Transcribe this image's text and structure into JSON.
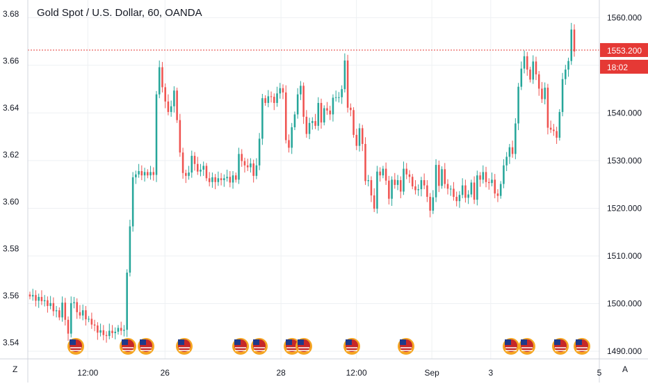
{
  "title": "Gold Spot / U.S. Dollar, 60, OANDA",
  "corner_left": "Z",
  "corner_right": "A",
  "last_price_label": "1553.200",
  "countdown_label": "18:02",
  "right_axis_partial": "155",
  "colors": {
    "up": "#26a69a",
    "down": "#ef5350",
    "grid": "#eef0f3",
    "axis_text": "#131722",
    "price_line": "#e53935"
  },
  "chart_data": {
    "type": "candlestick",
    "title": "Gold Spot / U.S. Dollar, 60, OANDA",
    "left_axis": {
      "ticks": [
        3.54,
        3.56,
        3.58,
        3.6,
        3.62,
        3.64,
        3.66,
        3.68
      ],
      "labels": [
        "3.54",
        "3.56",
        "3.58",
        "3.60",
        "3.62",
        "3.64",
        "3.66",
        "3.68"
      ],
      "range": [
        3.533,
        3.686
      ]
    },
    "right_axis": {
      "ticks": [
        1490,
        1500,
        1510,
        1520,
        1530,
        1540,
        1550,
        1560
      ],
      "labels": [
        "1490.000",
        "1500.000",
        "1510.000",
        "1520.000",
        "1530.000",
        "1540.000",
        "",
        "1560.000"
      ],
      "range": [
        1488.4,
        1563.7
      ]
    },
    "x_ticks": [
      {
        "label": "12:00",
        "frac": 0.105
      },
      {
        "label": "26",
        "frac": 0.24
      },
      {
        "label": "28",
        "frac": 0.443
      },
      {
        "label": "12:00",
        "frac": 0.575
      },
      {
        "label": "Sep",
        "frac": 0.707
      },
      {
        "label": "3",
        "frac": 0.81
      },
      {
        "label": "5",
        "frac": 1.0
      }
    ],
    "last_price": 1553.2,
    "grid": true,
    "series": [
      {
        "values": [
          1501.5,
          1501.8,
          1500.6,
          1501.4,
          1500.5,
          1500.7,
          1499.5,
          1500.1,
          1498.4,
          1498.6,
          1497.1,
          1500.2,
          1496.6,
          1493.7,
          1500.1,
          1500.3,
          1498.2,
          1497.5,
          1498.6,
          1496.7,
          1496.8,
          1495.6,
          1495.4,
          1493.9,
          1494.4,
          1493.4,
          1493.2,
          1494.3,
          1493.8,
          1494.1,
          1494.9,
          1494.3,
          1494.5,
          1506.5,
          1516.2,
          1526.5,
          1527.1,
          1527.8,
          1526.9,
          1527.6,
          1526.9,
          1527.6,
          1527.0,
          1543.9,
          1549.6,
          1545.4,
          1542.4,
          1540.2,
          1541.4,
          1544.7,
          1538.5,
          1531.7,
          1527.4,
          1526.8,
          1527.5,
          1531.0,
          1529.3,
          1527.7,
          1528.1,
          1528.9,
          1526.3,
          1525.5,
          1526.5,
          1525.5,
          1526.3,
          1525.9,
          1526.3,
          1526.6,
          1525.4,
          1526.9,
          1526.0,
          1531.4,
          1529.9,
          1529.0,
          1528.6,
          1529.4,
          1526.8,
          1529.0,
          1534.6,
          1543.1,
          1542.1,
          1543.5,
          1543.4,
          1542.1,
          1544.1,
          1545.2,
          1544.3,
          1534.3,
          1532.7,
          1537.0,
          1539.7,
          1543.9,
          1545.7,
          1539.2,
          1535.6,
          1537.9,
          1538.3,
          1537.3,
          1542.1,
          1538.0,
          1541.0,
          1540.5,
          1539.7,
          1543.2,
          1543.3,
          1543.3,
          1545.0,
          1551.0,
          1541.1,
          1540.6,
          1535.4,
          1533.1,
          1536.8,
          1533.5,
          1525.7,
          1525.9,
          1522.7,
          1519.9,
          1527.7,
          1526.9,
          1528.3,
          1525.8,
          1522.0,
          1526.0,
          1524.9,
          1525.9,
          1523.5,
          1528.3,
          1527.1,
          1526.6,
          1524.6,
          1523.8,
          1524.0,
          1525.9,
          1524.8,
          1522.4,
          1519.5,
          1522.3,
          1529.1,
          1524.7,
          1528.2,
          1525.1,
          1524.1,
          1524.1,
          1522.4,
          1521.5,
          1522.8,
          1524.8,
          1522.2,
          1522.9,
          1525.4,
          1521.8,
          1526.9,
          1526.0,
          1527.6,
          1525.5,
          1525.3,
          1526.0,
          1523.1,
          1522.6,
          1525.1,
          1529.0,
          1530.8,
          1532.8,
          1531.4,
          1537.8,
          1545.5,
          1549.3,
          1551.9,
          1549.1,
          1547.0,
          1550.8,
          1548.1,
          1545.1,
          1542.9,
          1545.3,
          1536.9,
          1536.5,
          1536.2,
          1534.8,
          1540.2,
          1547.1,
          1549.1,
          1550.9,
          1557.5,
          1552.9
        ]
      }
    ]
  }
}
